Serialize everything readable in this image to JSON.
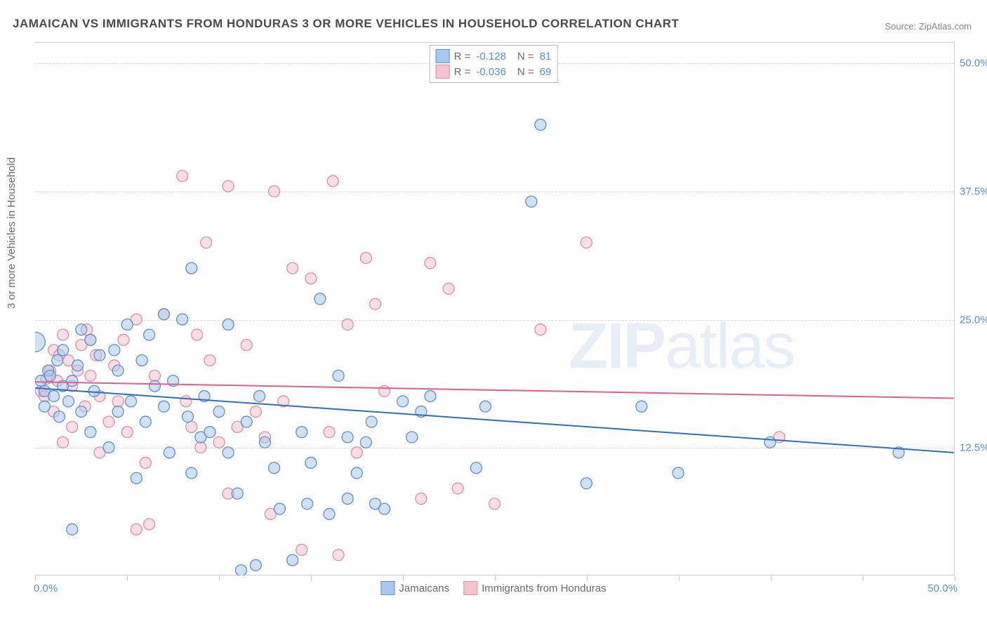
{
  "title": "JAMAICAN VS IMMIGRANTS FROM HONDURAS 3 OR MORE VEHICLES IN HOUSEHOLD CORRELATION CHART",
  "source": "Source: ZipAtlas.com",
  "y_axis_label": "3 or more Vehicles in Household",
  "watermark_a": "ZIP",
  "watermark_b": "atlas",
  "chart": {
    "type": "scatter",
    "xlim": [
      0,
      50
    ],
    "ylim": [
      0,
      52
    ],
    "x_min_label": "0.0%",
    "x_max_label": "50.0%",
    "y_ticks": [
      12.5,
      25.0,
      37.5,
      50.0
    ],
    "y_tick_labels": [
      "12.5%",
      "25.0%",
      "37.5%",
      "50.0%"
    ],
    "x_tick_positions": [
      0,
      5,
      10,
      15,
      20,
      25,
      30,
      35,
      40,
      45,
      50
    ],
    "background_color": "#ffffff",
    "grid_color": "#d8d8d8",
    "axis_color": "#cfcfcf",
    "label_color": "#6a6a6a",
    "tick_label_color": "#5a8fd6",
    "title_color": "#4b4b4b",
    "title_fontsize": 17,
    "label_fontsize": 15,
    "marker_radius": 8,
    "marker_radius_large": 14,
    "marker_opacity": 0.55,
    "line_width": 2,
    "series": [
      {
        "name": "Jamaicans",
        "fill": "#a9c8ec",
        "stroke": "#5a8fd6",
        "line_color": "#2f6fc4",
        "r_value": "-0.128",
        "n_value": "81",
        "trend": {
          "y_at_x0": 18.3,
          "y_at_x50": 12.0
        },
        "points": [
          [
            0.0,
            22.8,
            14
          ],
          [
            0.3,
            19.0,
            8
          ],
          [
            0.5,
            18.0,
            8
          ],
          [
            0.5,
            16.5,
            8
          ],
          [
            0.7,
            20.0,
            8
          ],
          [
            0.8,
            19.5,
            8
          ],
          [
            1.0,
            17.5,
            8
          ],
          [
            1.2,
            21.0,
            8
          ],
          [
            1.3,
            15.5,
            8
          ],
          [
            1.5,
            18.5,
            8
          ],
          [
            1.5,
            22.0,
            8
          ],
          [
            1.8,
            17.0,
            8
          ],
          [
            2.0,
            19.0,
            8
          ],
          [
            2.0,
            4.5,
            8
          ],
          [
            2.3,
            20.5,
            8
          ],
          [
            2.5,
            16.0,
            8
          ],
          [
            2.5,
            24.0,
            8
          ],
          [
            3.0,
            23.0,
            8
          ],
          [
            3.0,
            14.0,
            8
          ],
          [
            3.2,
            18.0,
            8
          ],
          [
            3.5,
            21.5,
            8
          ],
          [
            4.3,
            22.0,
            8
          ],
          [
            4.5,
            16.0,
            8
          ],
          [
            4.5,
            20.0,
            8
          ],
          [
            5.0,
            24.5,
            8
          ],
          [
            5.2,
            17.0,
            8
          ],
          [
            5.5,
            9.5,
            8
          ],
          [
            5.8,
            21.0,
            8
          ],
          [
            6.0,
            15.0,
            8
          ],
          [
            6.2,
            23.5,
            8
          ],
          [
            6.5,
            18.5,
            8
          ],
          [
            7.0,
            16.5,
            8
          ],
          [
            7.3,
            12.0,
            8
          ],
          [
            7.5,
            19.0,
            8
          ],
          [
            8.0,
            25.0,
            8
          ],
          [
            8.3,
            15.5,
            8
          ],
          [
            8.5,
            30.0,
            8
          ],
          [
            8.5,
            10.0,
            8
          ],
          [
            9.0,
            13.5,
            8
          ],
          [
            9.2,
            17.5,
            8
          ],
          [
            9.5,
            14.0,
            8
          ],
          [
            10.0,
            16.0,
            8
          ],
          [
            10.5,
            24.5,
            8
          ],
          [
            10.5,
            12.0,
            8
          ],
          [
            11.0,
            8.0,
            8
          ],
          [
            11.2,
            0.5,
            8
          ],
          [
            11.5,
            15.0,
            8
          ],
          [
            12.0,
            1.0,
            8
          ],
          [
            12.2,
            17.5,
            8
          ],
          [
            12.5,
            13.0,
            8
          ],
          [
            13.0,
            10.5,
            8
          ],
          [
            13.3,
            6.5,
            8
          ],
          [
            14.0,
            1.5,
            8
          ],
          [
            14.5,
            14.0,
            8
          ],
          [
            14.8,
            7.0,
            8
          ],
          [
            15.0,
            11.0,
            8
          ],
          [
            15.5,
            27.0,
            8
          ],
          [
            16.0,
            6.0,
            8
          ],
          [
            16.5,
            19.5,
            8
          ],
          [
            17.0,
            13.5,
            8
          ],
          [
            17.0,
            7.5,
            8
          ],
          [
            17.5,
            10.0,
            8
          ],
          [
            18.0,
            13.0,
            8
          ],
          [
            18.3,
            15.0,
            8
          ],
          [
            18.5,
            7.0,
            8
          ],
          [
            19.0,
            6.5,
            8
          ],
          [
            20.0,
            17.0,
            8
          ],
          [
            20.5,
            13.5,
            8
          ],
          [
            21.0,
            16.0,
            8
          ],
          [
            21.5,
            17.5,
            8
          ],
          [
            24.0,
            10.5,
            8
          ],
          [
            24.5,
            16.5,
            8
          ],
          [
            27.0,
            36.5,
            8
          ],
          [
            27.5,
            44.0,
            8
          ],
          [
            30.0,
            9.0,
            8
          ],
          [
            33.0,
            16.5,
            8
          ],
          [
            35.0,
            10.0,
            8
          ],
          [
            40.0,
            13.0,
            8
          ],
          [
            47.0,
            12.0,
            8
          ],
          [
            7.0,
            25.5,
            8
          ],
          [
            4.0,
            12.5,
            8
          ]
        ]
      },
      {
        "name": "Immigrants from Honduras",
        "fill": "#f4c5d0",
        "stroke": "#e48aa3",
        "line_color": "#e15f8f",
        "r_value": "-0.036",
        "n_value": "69",
        "trend": {
          "y_at_x0": 18.9,
          "y_at_x50": 17.3
        },
        "points": [
          [
            0.3,
            18.0,
            8
          ],
          [
            0.5,
            17.5,
            8
          ],
          [
            0.8,
            20.0,
            8
          ],
          [
            1.0,
            22.0,
            8
          ],
          [
            1.0,
            16.0,
            8
          ],
          [
            1.2,
            19.0,
            8
          ],
          [
            1.5,
            23.5,
            8
          ],
          [
            1.5,
            13.0,
            8
          ],
          [
            1.8,
            21.0,
            8
          ],
          [
            2.0,
            18.5,
            8
          ],
          [
            2.0,
            14.5,
            8
          ],
          [
            2.3,
            20.0,
            8
          ],
          [
            2.5,
            22.5,
            8
          ],
          [
            2.7,
            16.5,
            8
          ],
          [
            3.0,
            19.5,
            8
          ],
          [
            3.0,
            23.0,
            8
          ],
          [
            3.3,
            21.5,
            8
          ],
          [
            3.5,
            17.5,
            8
          ],
          [
            3.5,
            12.0,
            8
          ],
          [
            4.3,
            20.5,
            8
          ],
          [
            4.5,
            17.0,
            8
          ],
          [
            4.8,
            23.0,
            8
          ],
          [
            5.0,
            14.0,
            8
          ],
          [
            5.5,
            25.0,
            8
          ],
          [
            5.5,
            4.5,
            8
          ],
          [
            6.2,
            5.0,
            8
          ],
          [
            6.5,
            19.5,
            8
          ],
          [
            7.0,
            25.5,
            8
          ],
          [
            8.0,
            39.0,
            8
          ],
          [
            8.2,
            17.0,
            8
          ],
          [
            8.5,
            14.5,
            8
          ],
          [
            8.8,
            23.5,
            8
          ],
          [
            9.0,
            12.5,
            8
          ],
          [
            9.3,
            32.5,
            8
          ],
          [
            9.5,
            21.0,
            8
          ],
          [
            10.0,
            13.0,
            8
          ],
          [
            10.5,
            38.0,
            8
          ],
          [
            10.5,
            8.0,
            8
          ],
          [
            11.0,
            14.5,
            8
          ],
          [
            11.5,
            22.5,
            8
          ],
          [
            12.0,
            16.0,
            8
          ],
          [
            12.5,
            13.5,
            8
          ],
          [
            12.8,
            6.0,
            8
          ],
          [
            13.0,
            37.5,
            8
          ],
          [
            13.5,
            17.0,
            8
          ],
          [
            14.0,
            30.0,
            8
          ],
          [
            14.5,
            2.5,
            8
          ],
          [
            15.0,
            29.0,
            8
          ],
          [
            16.0,
            14.0,
            8
          ],
          [
            16.2,
            38.5,
            8
          ],
          [
            16.5,
            2.0,
            8
          ],
          [
            17.0,
            24.5,
            8
          ],
          [
            17.5,
            12.0,
            8
          ],
          [
            18.0,
            31.0,
            8
          ],
          [
            18.5,
            26.5,
            8
          ],
          [
            19.0,
            18.0,
            8
          ],
          [
            21.0,
            7.5,
            8
          ],
          [
            21.5,
            30.5,
            8
          ],
          [
            22.5,
            28.0,
            8
          ],
          [
            23.0,
            8.5,
            8
          ],
          [
            25.0,
            7.0,
            8
          ],
          [
            27.5,
            24.0,
            8
          ],
          [
            30.0,
            32.5,
            8
          ],
          [
            40.5,
            13.5,
            8
          ],
          [
            4.0,
            15.0,
            8
          ],
          [
            6.0,
            11.0,
            8
          ],
          [
            2.8,
            24.0,
            8
          ],
          [
            1.3,
            21.5,
            8
          ],
          [
            0.6,
            19.2,
            8
          ]
        ]
      }
    ]
  },
  "top_legend_labels": {
    "R": "R =",
    "N": "N ="
  },
  "bottom_legend": [
    "Jamaicans",
    "Immigrants from Honduras"
  ]
}
